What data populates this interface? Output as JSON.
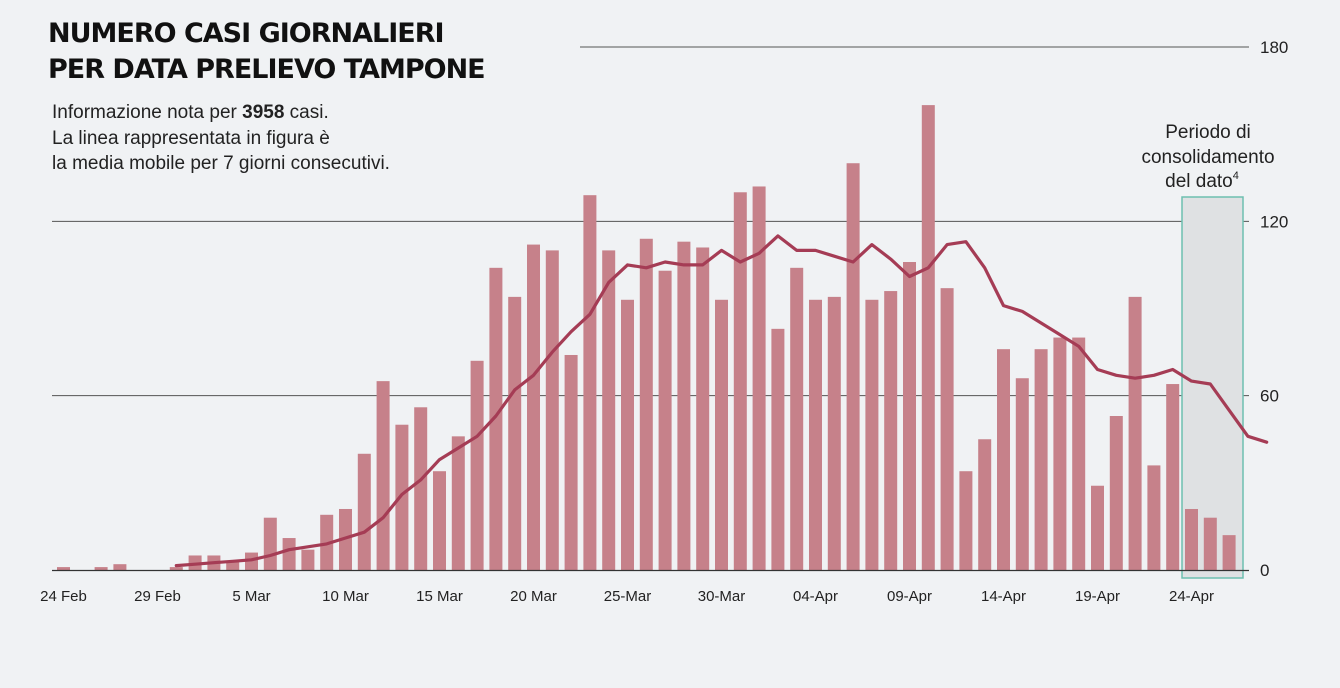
{
  "title_line1": "NUMERO CASI GIORNALIERI",
  "title_line2": "PER DATA PRELIEVO TAMPONE",
  "subtitle": {
    "line1_prefix": "Informazione nota per ",
    "total_cases": "3958",
    "line1_suffix": " casi.",
    "line2": "La linea rappresentata in figura è",
    "line3": "la media mobile per 7 giorni consecutivi."
  },
  "annotation": {
    "line1": "Periodo di",
    "line2": "consolidamento",
    "line3": "del dato",
    "footnote": "4"
  },
  "colors": {
    "bar": "#c6818a",
    "line": "#a53c55",
    "grid": "#555555",
    "band_fill": "#dfe1e3",
    "band_stroke": "#6dbfb0"
  },
  "chart_data": {
    "type": "bar",
    "title": "NUMERO CASI GIORNALIERI PER DATA PRELIEVO TAMPONE",
    "xlabel": "",
    "ylabel": "",
    "ylim": [
      0,
      180
    ],
    "yticks": [
      0,
      60,
      120,
      180
    ],
    "x_tick_labels": [
      "24 Feb",
      "29 Feb",
      "5 Mar",
      "10 Mar",
      "15 Mar",
      "20 Mar",
      "25-Mar",
      "30-Mar",
      "04-Apr",
      "09-Apr",
      "14-Apr",
      "19-Apr",
      "24-Apr"
    ],
    "x_tick_every": 5,
    "consolidation_start_index": 60,
    "series": [
      {
        "name": "Casi giornalieri",
        "type": "bar",
        "values": [
          1,
          0,
          1,
          2,
          0,
          0,
          1,
          5,
          5,
          3,
          6,
          18,
          11,
          7,
          19,
          21,
          40,
          65,
          50,
          56,
          34,
          46,
          72,
          104,
          94,
          112,
          110,
          74,
          129,
          110,
          93,
          114,
          103,
          113,
          111,
          93,
          130,
          132,
          83,
          104,
          93,
          94,
          140,
          93,
          96,
          106,
          160,
          97,
          34,
          45,
          76,
          66,
          76,
          80,
          80,
          29,
          53,
          94,
          36,
          64,
          21,
          18,
          12
        ]
      },
      {
        "name": "Media mobile 7 giorni",
        "type": "line",
        "start_index": 6,
        "values": [
          1.5,
          2,
          2.5,
          3,
          3.5,
          5,
          7,
          8,
          9,
          11,
          13,
          18,
          26,
          31,
          38,
          42,
          46,
          53,
          62,
          67,
          75,
          82,
          88,
          99,
          105,
          104,
          106,
          105,
          105,
          110,
          106,
          109,
          115,
          110,
          110,
          108,
          106,
          112,
          107,
          101,
          104,
          112,
          113,
          104,
          91,
          89,
          85,
          81,
          77,
          69,
          67,
          66,
          67,
          69,
          65,
          64,
          55,
          46,
          44
        ]
      }
    ]
  }
}
